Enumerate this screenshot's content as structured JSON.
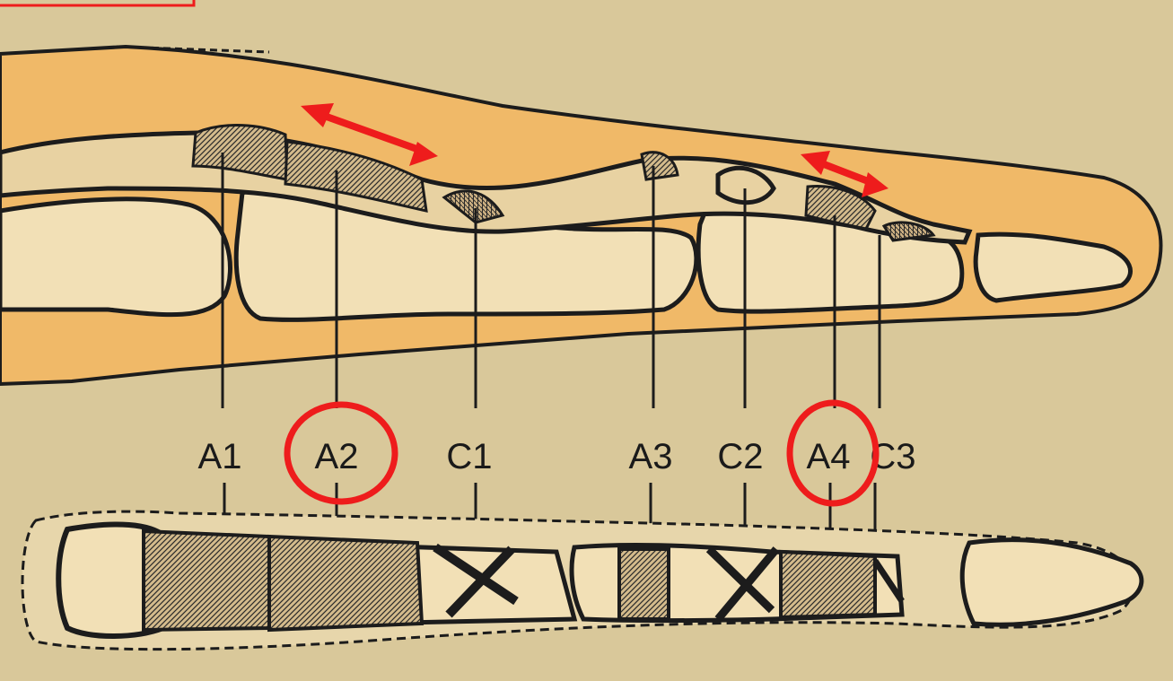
{
  "figure": {
    "labels": [
      "A1",
      "A2",
      "C1",
      "A3",
      "C2",
      "A4",
      "C3"
    ],
    "highlighted": [
      "A2",
      "A4"
    ],
    "colors": {
      "background": "#d9c89a",
      "skin": "#f0b968",
      "bone": "#f2e0b6",
      "sheath": "#c9ad7e",
      "ink": "#1c1c1c",
      "highlight": "#ee1c1c"
    }
  }
}
